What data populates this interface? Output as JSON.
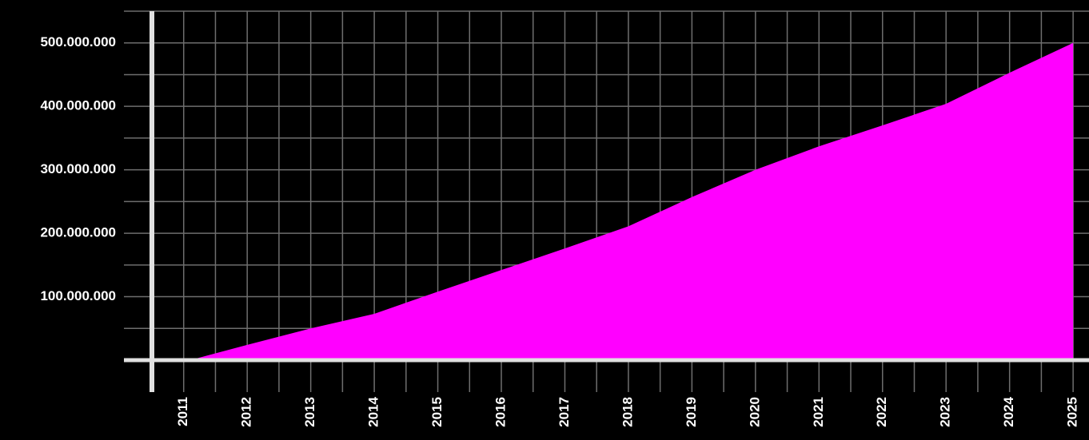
{
  "chart_data": {
    "type": "area",
    "color": "#ff00ff",
    "grid": true,
    "x": [
      2011.1,
      2012,
      2013,
      2014,
      2015,
      2016,
      2017,
      2018,
      2019,
      2020,
      2021,
      2022,
      2023,
      2024,
      2025
    ],
    "values": [
      0,
      24000000,
      50000000,
      73000000,
      108000000,
      142000000,
      176000000,
      211000000,
      257000000,
      300000000,
      337000000,
      370000000,
      404000000,
      453000000,
      500000000
    ],
    "xlim": [
      2010.5,
      2025.25
    ],
    "xticks": [
      2011,
      2012,
      2013,
      2014,
      2015,
      2016,
      2017,
      2018,
      2019,
      2020,
      2021,
      2022,
      2023,
      2024,
      2025
    ],
    "xminor": [
      2011.5,
      2012.5,
      2013.5,
      2014.5,
      2015.5,
      2016.5,
      2017.5,
      2018.5,
      2019.5,
      2020.5,
      2021.5,
      2022.5,
      2023.5,
      2024.5
    ],
    "ylim": [
      0,
      550000000
    ],
    "yticks": [
      {
        "value": 100000000,
        "label": "100.000.000"
      },
      {
        "value": 200000000,
        "label": "200.000.000"
      },
      {
        "value": 300000000,
        "label": "300.000.000"
      },
      {
        "value": 400000000,
        "label": "400.000.000"
      },
      {
        "value": 500000000,
        "label": "500.000.000"
      }
    ],
    "yminor": [
      50000000,
      150000000,
      250000000,
      350000000,
      450000000,
      550000000
    ]
  }
}
